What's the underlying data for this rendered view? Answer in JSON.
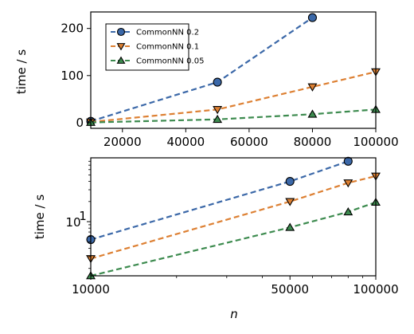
{
  "chart_data": [
    {
      "type": "line",
      "ylabel": "time / s",
      "xlim": [
        10000,
        100000
      ],
      "ylim": [
        -12,
        235
      ],
      "xticks": [
        20000,
        40000,
        60000,
        80000,
        100000
      ],
      "xtick_labels": [
        "20000",
        "40000",
        "60000",
        "80000",
        "100000"
      ],
      "yticks": [
        0,
        100,
        200
      ],
      "ytick_labels": [
        "0",
        "100",
        "200"
      ],
      "legend": "top-left",
      "grid": false,
      "series": [
        {
          "name": "CommonNN 0.2",
          "color": "#3b68a8",
          "marker": "circle",
          "x": [
            10000,
            50000,
            80000
          ],
          "y": [
            3,
            86,
            223
          ]
        },
        {
          "name": "CommonNN 0.1",
          "color": "#dd8033",
          "marker": "triangle-down",
          "x": [
            10000,
            50000,
            80000,
            100000
          ],
          "y": [
            1.5,
            28,
            76,
            108
          ]
        },
        {
          "name": "CommonNN 0.05",
          "color": "#3d8b4f",
          "marker": "triangle-up",
          "x": [
            10000,
            50000,
            80000,
            100000
          ],
          "y": [
            0.5,
            7,
            18,
            28
          ]
        }
      ]
    },
    {
      "type": "line",
      "xlabel": "n",
      "ylabel": "time / s",
      "xscale": "log",
      "yscale": "log",
      "xlim": [
        10000,
        100000
      ],
      "ylim": [
        1.55,
        90
      ],
      "xticks": [
        10000,
        50000,
        100000
      ],
      "xtick_labels": [
        "10000",
        "50000",
        "100000"
      ],
      "yticks": [
        10
      ],
      "ytick_labels": [
        "10"
      ],
      "grid": false,
      "series": [
        {
          "name": "CommonNN 0.2",
          "color": "#3b68a8",
          "marker": "circle",
          "x": [
            10000,
            50000,
            80000
          ],
          "y": [
            5.4,
            40,
            80
          ]
        },
        {
          "name": "CommonNN 0.1",
          "color": "#dd8033",
          "marker": "triangle-down",
          "x": [
            10000,
            50000,
            80000,
            100000
          ],
          "y": [
            2.8,
            20,
            38,
            48
          ]
        },
        {
          "name": "CommonNN 0.05",
          "color": "#3d8b4f",
          "marker": "triangle-up",
          "x": [
            10000,
            50000,
            80000,
            100000
          ],
          "y": [
            1.55,
            8.2,
            14,
            19.5
          ]
        }
      ]
    }
  ]
}
